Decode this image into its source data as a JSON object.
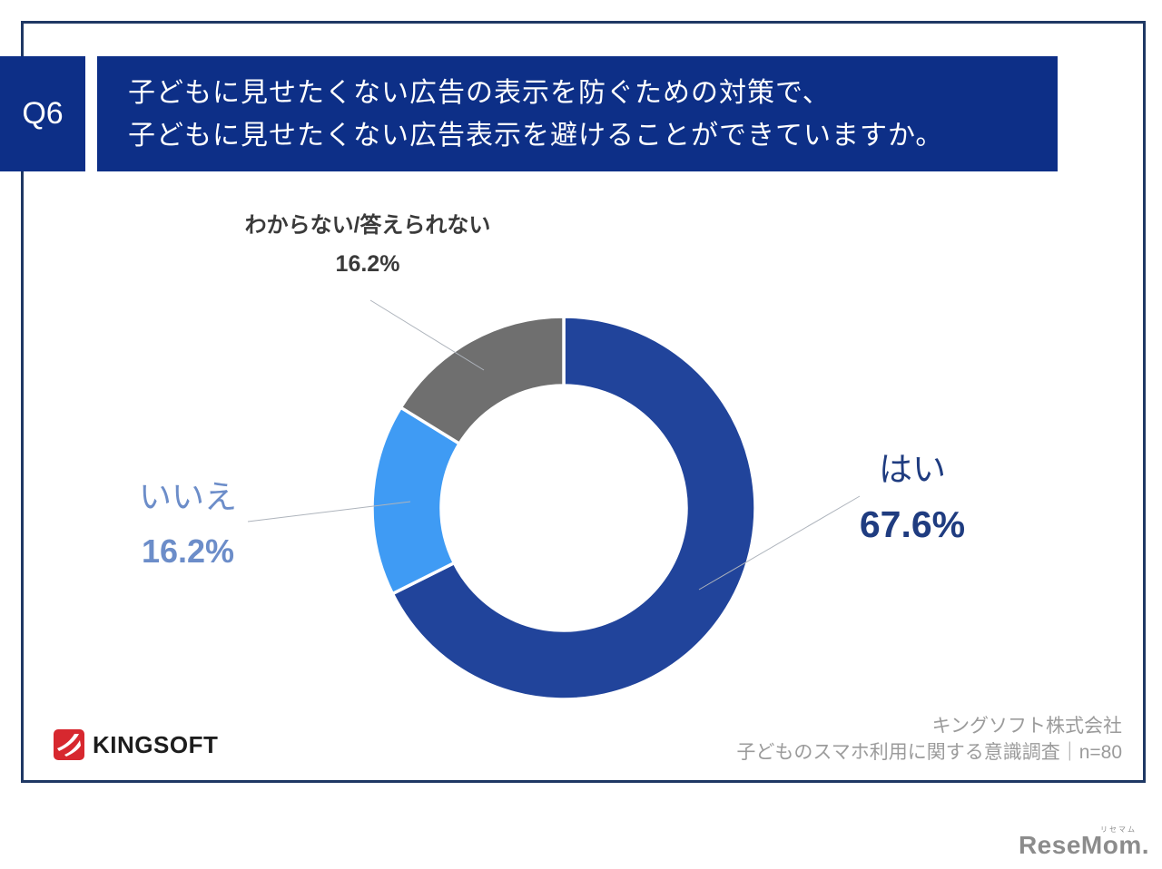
{
  "header": {
    "q_label": "Q6",
    "title_line1": "子どもに見せたくない広告の表示を防ぐための対策で、",
    "title_line2": "子どもに見せたくない広告表示を避けることができていますか。"
  },
  "chart_data": {
    "type": "pie",
    "title": "子どもに見せたくない広告の表示を防ぐための対策で、子どもに見せたくない広告表示を避けることができていますか。",
    "categories": [
      "はい",
      "いいえ",
      "わからない/答えられない"
    ],
    "values": [
      67.6,
      16.2,
      16.2
    ],
    "unit": "%",
    "data_labels": [
      "67.6%",
      "16.2%",
      "16.2%"
    ],
    "colors": [
      "#21449B",
      "#3F9BF4",
      "#6F6F6F"
    ],
    "donut": true,
    "hole_ratio": 0.64,
    "start_angle_deg": 0,
    "direction": "clockwise",
    "legend_position": "none"
  },
  "callouts": {
    "yes": {
      "label": "はい",
      "value": "67.6%"
    },
    "no": {
      "label": "いいえ",
      "value": "16.2%"
    },
    "unknown": {
      "label": "わからない/答えられない",
      "value": "16.2%"
    }
  },
  "footer": {
    "company": "キングソフト株式会社",
    "survey": "子どものスマホ利用に関する意識調査｜n=80",
    "logo_text": "KINGSOFT"
  },
  "watermark": {
    "text": "ReseMom.",
    "ruby": "リセマム"
  }
}
